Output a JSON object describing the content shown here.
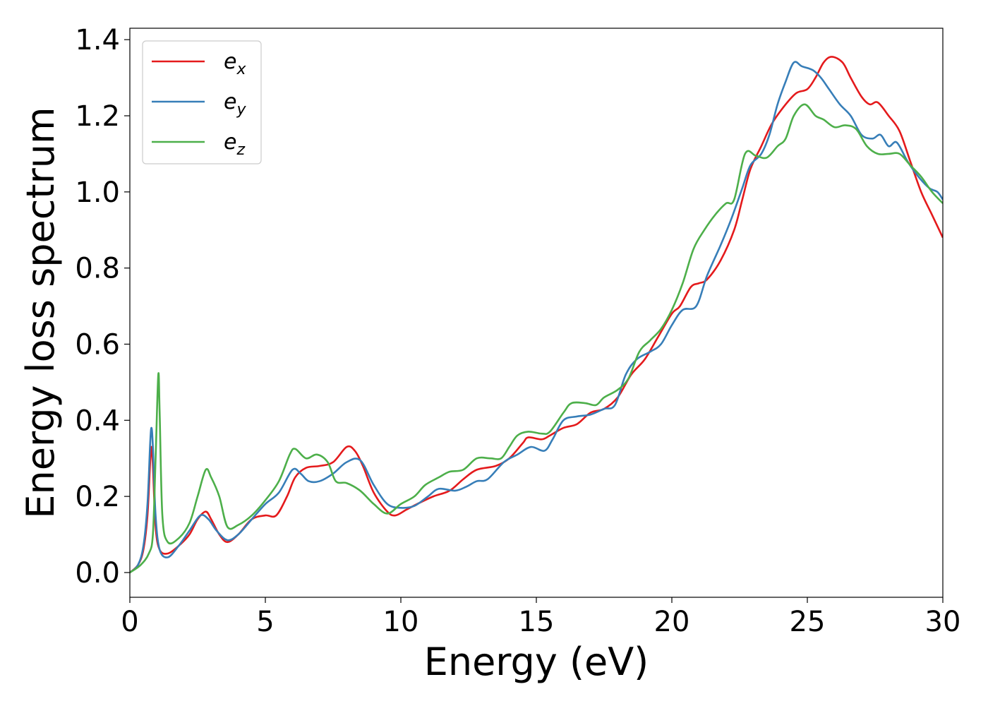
{
  "chart_data": {
    "type": "line",
    "title": "",
    "xlabel": "Energy (eV)",
    "ylabel": "Energy loss spectrum",
    "xlim": [
      0,
      30
    ],
    "ylim": [
      -0.065,
      1.43
    ],
    "xticks": [
      0,
      5,
      10,
      15,
      20,
      25,
      30
    ],
    "xtick_labels": [
      "0",
      "5",
      "10",
      "15",
      "20",
      "25",
      "30"
    ],
    "yticks": [
      0.0,
      0.2,
      0.4,
      0.6,
      0.8,
      1.0,
      1.2,
      1.4
    ],
    "ytick_labels": [
      "0.0",
      "0.2",
      "0.4",
      "0.6",
      "0.8",
      "1.0",
      "1.2",
      "1.4"
    ],
    "grid": false,
    "legend_position": "upper-left",
    "series": [
      {
        "name": "e_x",
        "label_base": "e",
        "label_sub": "x",
        "color": "#e41a1c",
        "points": [
          [
            0,
            0
          ],
          [
            0.3,
            0.02
          ],
          [
            0.5,
            0.06
          ],
          [
            0.65,
            0.15
          ],
          [
            0.75,
            0.29
          ],
          [
            0.8,
            0.33
          ],
          [
            0.85,
            0.28
          ],
          [
            0.95,
            0.12
          ],
          [
            1.1,
            0.06
          ],
          [
            1.4,
            0.05
          ],
          [
            1.8,
            0.07
          ],
          [
            2.2,
            0.1
          ],
          [
            2.5,
            0.14
          ],
          [
            2.8,
            0.16
          ],
          [
            3.0,
            0.14
          ],
          [
            3.3,
            0.1
          ],
          [
            3.6,
            0.08
          ],
          [
            4.0,
            0.1
          ],
          [
            4.5,
            0.14
          ],
          [
            5.0,
            0.15
          ],
          [
            5.4,
            0.15
          ],
          [
            5.8,
            0.2
          ],
          [
            6.1,
            0.25
          ],
          [
            6.5,
            0.275
          ],
          [
            7.0,
            0.28
          ],
          [
            7.5,
            0.29
          ],
          [
            8.0,
            0.33
          ],
          [
            8.3,
            0.32
          ],
          [
            8.6,
            0.28
          ],
          [
            9.0,
            0.21
          ],
          [
            9.5,
            0.16
          ],
          [
            9.8,
            0.15
          ],
          [
            10.2,
            0.165
          ],
          [
            10.6,
            0.18
          ],
          [
            11.2,
            0.2
          ],
          [
            11.8,
            0.215
          ],
          [
            12.3,
            0.245
          ],
          [
            12.8,
            0.27
          ],
          [
            13.5,
            0.28
          ],
          [
            14.0,
            0.3
          ],
          [
            14.5,
            0.34
          ],
          [
            14.7,
            0.355
          ],
          [
            15.2,
            0.35
          ],
          [
            15.5,
            0.36
          ],
          [
            16.0,
            0.38
          ],
          [
            16.5,
            0.39
          ],
          [
            17.0,
            0.42
          ],
          [
            17.5,
            0.43
          ],
          [
            18.0,
            0.46
          ],
          [
            18.5,
            0.52
          ],
          [
            19.0,
            0.56
          ],
          [
            19.5,
            0.62
          ],
          [
            20.0,
            0.68
          ],
          [
            20.3,
            0.7
          ],
          [
            20.7,
            0.75
          ],
          [
            21.0,
            0.76
          ],
          [
            21.3,
            0.77
          ],
          [
            21.8,
            0.82
          ],
          [
            22.3,
            0.9
          ],
          [
            22.6,
            0.98
          ],
          [
            22.9,
            1.06
          ],
          [
            23.3,
            1.12
          ],
          [
            23.7,
            1.18
          ],
          [
            24.2,
            1.23
          ],
          [
            24.6,
            1.26
          ],
          [
            25.0,
            1.27
          ],
          [
            25.3,
            1.3
          ],
          [
            25.6,
            1.34
          ],
          [
            25.9,
            1.355
          ],
          [
            26.3,
            1.34
          ],
          [
            26.6,
            1.3
          ],
          [
            27.0,
            1.25
          ],
          [
            27.3,
            1.23
          ],
          [
            27.6,
            1.235
          ],
          [
            28.0,
            1.2
          ],
          [
            28.4,
            1.16
          ],
          [
            28.8,
            1.08
          ],
          [
            29.2,
            1.0
          ],
          [
            29.6,
            0.94
          ],
          [
            30.0,
            0.88
          ]
        ]
      },
      {
        "name": "e_y",
        "label_base": "e",
        "label_sub": "y",
        "color": "#377eb8",
        "points": [
          [
            0,
            0
          ],
          [
            0.3,
            0.02
          ],
          [
            0.5,
            0.07
          ],
          [
            0.65,
            0.18
          ],
          [
            0.75,
            0.34
          ],
          [
            0.8,
            0.38
          ],
          [
            0.85,
            0.33
          ],
          [
            0.95,
            0.15
          ],
          [
            1.1,
            0.06
          ],
          [
            1.4,
            0.04
          ],
          [
            1.8,
            0.07
          ],
          [
            2.2,
            0.11
          ],
          [
            2.6,
            0.15
          ],
          [
            2.9,
            0.14
          ],
          [
            3.2,
            0.11
          ],
          [
            3.6,
            0.085
          ],
          [
            4.0,
            0.1
          ],
          [
            4.5,
            0.14
          ],
          [
            5.0,
            0.18
          ],
          [
            5.5,
            0.21
          ],
          [
            6.0,
            0.27
          ],
          [
            6.3,
            0.26
          ],
          [
            6.6,
            0.24
          ],
          [
            7.0,
            0.24
          ],
          [
            7.5,
            0.26
          ],
          [
            8.0,
            0.29
          ],
          [
            8.5,
            0.295
          ],
          [
            9.0,
            0.23
          ],
          [
            9.5,
            0.18
          ],
          [
            10.0,
            0.17
          ],
          [
            10.5,
            0.175
          ],
          [
            11.0,
            0.2
          ],
          [
            11.4,
            0.22
          ],
          [
            12.0,
            0.215
          ],
          [
            12.4,
            0.225
          ],
          [
            12.8,
            0.24
          ],
          [
            13.2,
            0.245
          ],
          [
            13.8,
            0.29
          ],
          [
            14.3,
            0.31
          ],
          [
            14.8,
            0.33
          ],
          [
            15.3,
            0.32
          ],
          [
            15.6,
            0.35
          ],
          [
            16.0,
            0.4
          ],
          [
            16.5,
            0.41
          ],
          [
            17.0,
            0.415
          ],
          [
            17.5,
            0.43
          ],
          [
            17.9,
            0.44
          ],
          [
            18.3,
            0.52
          ],
          [
            18.7,
            0.56
          ],
          [
            19.2,
            0.58
          ],
          [
            19.6,
            0.6
          ],
          [
            20.0,
            0.65
          ],
          [
            20.4,
            0.69
          ],
          [
            20.9,
            0.7
          ],
          [
            21.3,
            0.78
          ],
          [
            21.8,
            0.86
          ],
          [
            22.2,
            0.93
          ],
          [
            22.6,
            1.01
          ],
          [
            22.9,
            1.07
          ],
          [
            23.3,
            1.1
          ],
          [
            23.6,
            1.15
          ],
          [
            23.9,
            1.23
          ],
          [
            24.2,
            1.29
          ],
          [
            24.5,
            1.34
          ],
          [
            24.8,
            1.33
          ],
          [
            25.2,
            1.32
          ],
          [
            25.5,
            1.3
          ],
          [
            25.8,
            1.27
          ],
          [
            26.2,
            1.23
          ],
          [
            26.6,
            1.2
          ],
          [
            27.0,
            1.15
          ],
          [
            27.4,
            1.14
          ],
          [
            27.7,
            1.15
          ],
          [
            28.0,
            1.12
          ],
          [
            28.3,
            1.13
          ],
          [
            28.7,
            1.08
          ],
          [
            29.1,
            1.04
          ],
          [
            29.5,
            1.01
          ],
          [
            29.8,
            1.0
          ],
          [
            30.0,
            0.98
          ]
        ]
      },
      {
        "name": "e_z",
        "label_base": "e",
        "label_sub": "z",
        "color": "#4daf4a",
        "points": [
          [
            0,
            0
          ],
          [
            0.4,
            0.02
          ],
          [
            0.7,
            0.05
          ],
          [
            0.85,
            0.1
          ],
          [
            0.95,
            0.3
          ],
          [
            1.05,
            0.52
          ],
          [
            1.1,
            0.42
          ],
          [
            1.2,
            0.15
          ],
          [
            1.4,
            0.08
          ],
          [
            1.8,
            0.09
          ],
          [
            2.2,
            0.13
          ],
          [
            2.5,
            0.2
          ],
          [
            2.8,
            0.27
          ],
          [
            3.0,
            0.25
          ],
          [
            3.3,
            0.2
          ],
          [
            3.6,
            0.12
          ],
          [
            4.0,
            0.125
          ],
          [
            4.5,
            0.15
          ],
          [
            5.0,
            0.19
          ],
          [
            5.5,
            0.24
          ],
          [
            5.9,
            0.31
          ],
          [
            6.1,
            0.325
          ],
          [
            6.5,
            0.3
          ],
          [
            6.9,
            0.31
          ],
          [
            7.3,
            0.29
          ],
          [
            7.6,
            0.24
          ],
          [
            8.0,
            0.235
          ],
          [
            8.5,
            0.215
          ],
          [
            9.0,
            0.18
          ],
          [
            9.5,
            0.155
          ],
          [
            10.0,
            0.18
          ],
          [
            10.5,
            0.2
          ],
          [
            10.9,
            0.23
          ],
          [
            11.4,
            0.25
          ],
          [
            11.8,
            0.265
          ],
          [
            12.3,
            0.27
          ],
          [
            12.8,
            0.3
          ],
          [
            13.3,
            0.3
          ],
          [
            13.7,
            0.3
          ],
          [
            14.0,
            0.33
          ],
          [
            14.3,
            0.36
          ],
          [
            14.7,
            0.37
          ],
          [
            15.2,
            0.365
          ],
          [
            15.5,
            0.37
          ],
          [
            16.0,
            0.42
          ],
          [
            16.3,
            0.445
          ],
          [
            16.8,
            0.445
          ],
          [
            17.2,
            0.44
          ],
          [
            17.5,
            0.46
          ],
          [
            18.0,
            0.48
          ],
          [
            18.4,
            0.51
          ],
          [
            18.8,
            0.58
          ],
          [
            19.2,
            0.61
          ],
          [
            19.6,
            0.64
          ],
          [
            20.0,
            0.69
          ],
          [
            20.4,
            0.76
          ],
          [
            20.8,
            0.85
          ],
          [
            21.2,
            0.9
          ],
          [
            21.6,
            0.94
          ],
          [
            22.0,
            0.97
          ],
          [
            22.3,
            0.98
          ],
          [
            22.7,
            1.1
          ],
          [
            23.1,
            1.095
          ],
          [
            23.5,
            1.09
          ],
          [
            23.9,
            1.12
          ],
          [
            24.2,
            1.14
          ],
          [
            24.5,
            1.2
          ],
          [
            24.9,
            1.23
          ],
          [
            25.3,
            1.2
          ],
          [
            25.6,
            1.19
          ],
          [
            26.0,
            1.17
          ],
          [
            26.4,
            1.175
          ],
          [
            26.8,
            1.165
          ],
          [
            27.2,
            1.12
          ],
          [
            27.6,
            1.1
          ],
          [
            28.0,
            1.1
          ],
          [
            28.4,
            1.1
          ],
          [
            28.8,
            1.07
          ],
          [
            29.2,
            1.04
          ],
          [
            29.6,
            1.0
          ],
          [
            30.0,
            0.97
          ]
        ]
      }
    ]
  }
}
